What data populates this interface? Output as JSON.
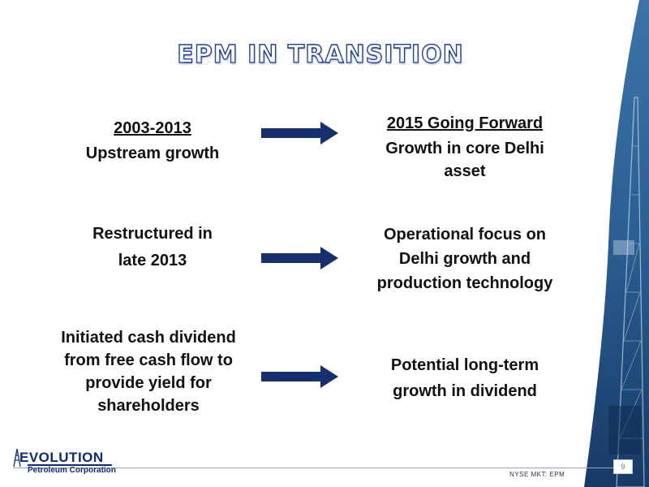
{
  "slide": {
    "title": "EPM IN TRANSITION",
    "rows": [
      {
        "left": {
          "heading": "2003-2013",
          "body": "Upstream growth"
        },
        "right": {
          "heading": "2015 Going Forward",
          "body_lines": [
            "Growth in core Delhi",
            "asset"
          ]
        }
      },
      {
        "left": {
          "body_lines": [
            "Restructured in",
            "late 2013"
          ]
        },
        "right": {
          "body_lines": [
            "Operational focus on",
            "Delhi growth and",
            "production technology"
          ]
        }
      },
      {
        "left": {
          "body_lines": [
            "Initiated cash dividend",
            "from free cash flow to",
            "provide yield for",
            "shareholders"
          ]
        },
        "right": {
          "body_lines": [
            "Potential long-term",
            "growth in dividend"
          ]
        }
      }
    ]
  },
  "footer": {
    "logo_main": "EVOLUTION",
    "logo_sub": "Petroleum Corporation",
    "ticker": "NYSE MKT: EPM",
    "page_number": "9"
  },
  "colors": {
    "arrow": "#16306e",
    "title_outline": "#1f3f8f",
    "panel": "#2b5e92",
    "logo": "#0e2a7a"
  },
  "icons": {
    "arrow": "right-arrow-icon",
    "logo_mark": "derrick-icon"
  }
}
